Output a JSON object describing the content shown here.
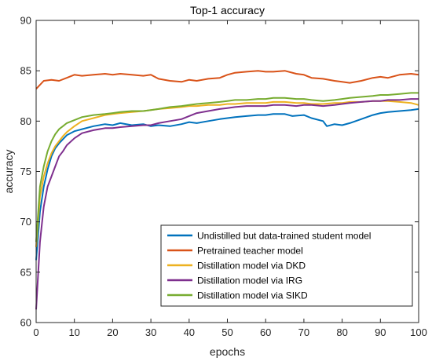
{
  "chart_data": {
    "type": "line",
    "title": "Top-1 accuracy",
    "xlabel": "epochs",
    "ylabel": "accuracy",
    "xlim": [
      0,
      100
    ],
    "ylim": [
      60,
      90
    ],
    "xticks": [
      0,
      10,
      20,
      30,
      40,
      50,
      60,
      70,
      80,
      90,
      100
    ],
    "yticks": [
      60,
      65,
      70,
      75,
      80,
      85,
      90
    ],
    "grid": false,
    "legend_position": "bottom-right",
    "series": [
      {
        "name": "Undistilled but data-trained student model",
        "color": "#0072BD",
        "x": [
          0,
          1,
          2,
          3,
          4,
          5,
          6,
          7,
          8,
          10,
          12,
          15,
          18,
          20,
          22,
          25,
          28,
          30,
          32,
          35,
          38,
          40,
          42,
          45,
          48,
          50,
          52,
          55,
          58,
          60,
          62,
          65,
          67,
          70,
          72,
          75,
          76,
          78,
          80,
          82,
          85,
          88,
          90,
          92,
          95,
          98,
          100
        ],
        "y": [
          66.2,
          71.0,
          73.5,
          75.2,
          76.5,
          77.3,
          77.8,
          78.2,
          78.6,
          79.0,
          79.2,
          79.5,
          79.7,
          79.6,
          79.8,
          79.6,
          79.7,
          79.5,
          79.6,
          79.5,
          79.7,
          79.9,
          79.8,
          80.0,
          80.2,
          80.3,
          80.4,
          80.5,
          80.6,
          80.6,
          80.7,
          80.7,
          80.5,
          80.6,
          80.3,
          80.0,
          79.5,
          79.7,
          79.6,
          79.8,
          80.2,
          80.6,
          80.8,
          80.9,
          81.0,
          81.1,
          81.2
        ]
      },
      {
        "name": "Pretrained teacher model",
        "color": "#D95319",
        "x": [
          0,
          2,
          4,
          6,
          8,
          10,
          12,
          15,
          18,
          20,
          22,
          25,
          28,
          30,
          32,
          35,
          38,
          40,
          42,
          45,
          48,
          50,
          52,
          55,
          58,
          60,
          62,
          65,
          68,
          70,
          72,
          75,
          78,
          80,
          82,
          85,
          88,
          90,
          92,
          95,
          98,
          100
        ],
        "y": [
          83.2,
          84.0,
          84.1,
          84.0,
          84.3,
          84.6,
          84.5,
          84.6,
          84.7,
          84.6,
          84.7,
          84.6,
          84.5,
          84.6,
          84.2,
          84.0,
          83.9,
          84.1,
          84.0,
          84.2,
          84.3,
          84.6,
          84.8,
          84.9,
          85.0,
          84.9,
          84.9,
          85.0,
          84.7,
          84.6,
          84.3,
          84.2,
          84.0,
          83.9,
          83.8,
          84.0,
          84.3,
          84.4,
          84.3,
          84.6,
          84.7,
          84.6
        ]
      },
      {
        "name": "Distillation model via DKD",
        "color": "#EDB120",
        "x": [
          0,
          1,
          2,
          3,
          4,
          5,
          6,
          7,
          8,
          10,
          12,
          15,
          18,
          20,
          22,
          25,
          28,
          30,
          32,
          35,
          38,
          40,
          42,
          45,
          48,
          50,
          52,
          55,
          58,
          60,
          62,
          65,
          68,
          70,
          72,
          75,
          78,
          80,
          82,
          85,
          88,
          90,
          92,
          95,
          98,
          100
        ],
        "y": [
          67.5,
          72.5,
          74.5,
          75.8,
          76.8,
          77.5,
          78.0,
          78.5,
          78.9,
          79.5,
          80.0,
          80.3,
          80.6,
          80.7,
          80.8,
          80.9,
          81.0,
          81.1,
          81.2,
          81.3,
          81.4,
          81.5,
          81.5,
          81.6,
          81.6,
          81.7,
          81.7,
          81.8,
          81.8,
          81.8,
          81.9,
          81.9,
          81.8,
          81.8,
          81.7,
          81.7,
          81.8,
          81.8,
          81.9,
          81.9,
          82.0,
          82.0,
          82.0,
          81.9,
          81.8,
          81.6
        ]
      },
      {
        "name": "Distillation model via IRG",
        "color": "#7E2F8E",
        "x": [
          0,
          1,
          2,
          3,
          4,
          5,
          6,
          7,
          8,
          10,
          12,
          15,
          18,
          20,
          22,
          25,
          28,
          30,
          32,
          35,
          38,
          40,
          42,
          45,
          48,
          50,
          52,
          55,
          58,
          60,
          62,
          65,
          68,
          70,
          72,
          75,
          78,
          80,
          82,
          85,
          88,
          90,
          92,
          95,
          98,
          100
        ],
        "y": [
          61.3,
          68.0,
          71.5,
          73.5,
          74.5,
          75.5,
          76.5,
          77.0,
          77.6,
          78.3,
          78.8,
          79.1,
          79.3,
          79.3,
          79.4,
          79.5,
          79.6,
          79.6,
          79.8,
          80.0,
          80.2,
          80.5,
          80.8,
          81.0,
          81.2,
          81.3,
          81.4,
          81.5,
          81.5,
          81.5,
          81.6,
          81.6,
          81.5,
          81.6,
          81.6,
          81.5,
          81.6,
          81.7,
          81.8,
          81.9,
          82.0,
          82.0,
          82.1,
          82.1,
          82.2,
          82.2
        ]
      },
      {
        "name": "Distillation model via SIKD",
        "color": "#77AC30",
        "x": [
          0,
          1,
          2,
          3,
          4,
          5,
          6,
          7,
          8,
          10,
          12,
          15,
          18,
          20,
          22,
          25,
          28,
          30,
          32,
          35,
          38,
          40,
          42,
          45,
          48,
          50,
          52,
          55,
          58,
          60,
          62,
          65,
          68,
          70,
          72,
          75,
          78,
          80,
          82,
          85,
          88,
          90,
          92,
          95,
          98,
          100
        ],
        "y": [
          68.0,
          73.5,
          75.5,
          77.0,
          78.0,
          78.7,
          79.2,
          79.5,
          79.8,
          80.1,
          80.4,
          80.6,
          80.7,
          80.8,
          80.9,
          81.0,
          81.0,
          81.1,
          81.2,
          81.4,
          81.5,
          81.6,
          81.7,
          81.8,
          81.9,
          82.0,
          82.1,
          82.1,
          82.2,
          82.2,
          82.3,
          82.3,
          82.2,
          82.2,
          82.1,
          82.0,
          82.1,
          82.2,
          82.3,
          82.4,
          82.5,
          82.6,
          82.6,
          82.7,
          82.8,
          82.8
        ]
      }
    ]
  }
}
